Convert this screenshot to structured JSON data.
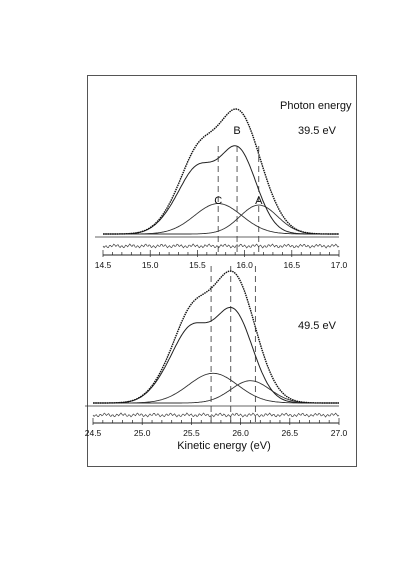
{
  "chart_data": [
    {
      "type": "line",
      "title": "",
      "annotation_lines": [
        "Photon energy",
        "39.5 eV"
      ],
      "xlabel": "",
      "xlim": [
        14.5,
        17.0
      ],
      "x_ticks": [
        "14.5",
        "15.0",
        "15.5",
        "16.0",
        "16.5",
        "17.0"
      ],
      "peak_labels": [
        {
          "text": "B",
          "x": 15.92
        },
        {
          "text": "C",
          "x": 15.72
        },
        {
          "text": "A",
          "x": 16.15
        }
      ],
      "dashed_lines_x": [
        15.72,
        15.92,
        16.15
      ],
      "components": [
        {
          "center": 15.92,
          "width": 0.2,
          "amp": 0.56
        },
        {
          "center": 15.5,
          "width": 0.17,
          "amp": 0.36
        },
        {
          "center": 15.25,
          "width": 0.17,
          "amp": 0.1
        },
        {
          "center": 15.72,
          "width": 0.25,
          "amp": 0.2
        },
        {
          "center": 16.15,
          "width": 0.2,
          "amp": 0.19
        }
      ],
      "total_peak": 1.0
    },
    {
      "type": "line",
      "title": "",
      "annotation_lines": [
        "49.5 eV"
      ],
      "xlabel": "Kinetic energy (eV)",
      "xlim": [
        24.5,
        27.0
      ],
      "x_ticks": [
        "24.5",
        "25.0",
        "25.5",
        "26.0",
        "26.5",
        "27.0"
      ],
      "peak_labels": [],
      "dashed_lines_x": [
        25.7,
        25.9,
        26.15
      ],
      "components": [
        {
          "center": 25.92,
          "width": 0.2,
          "amp": 0.62
        },
        {
          "center": 25.5,
          "width": 0.17,
          "amp": 0.42
        },
        {
          "center": 25.25,
          "width": 0.17,
          "amp": 0.12
        },
        {
          "center": 25.72,
          "width": 0.25,
          "amp": 0.2
        },
        {
          "center": 26.1,
          "width": 0.2,
          "amp": 0.15
        }
      ],
      "total_peak": 1.0
    }
  ]
}
